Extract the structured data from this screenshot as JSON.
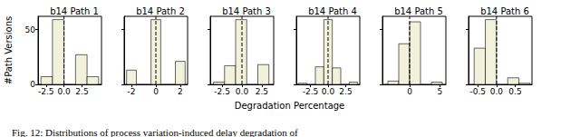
{
  "chart_data": [
    {
      "type": "histogram",
      "title": "b14 Path 1",
      "color": "#f2f1dc",
      "bins": [
        -3.2,
        -1.6,
        0.0,
        1.6,
        3.2,
        4.8
      ],
      "counts": [
        7,
        59,
        0,
        27,
        7
      ],
      "xlim": [
        -3.6,
        5.2
      ],
      "xticks": [
        -2.5,
        {
          "value": 0,
          "label": "0.0"
        },
        2.5
      ],
      "ylim": [
        0,
        62
      ],
      "yticks": [
        0,
        50
      ],
      "vline": 0
    },
    {
      "type": "histogram",
      "title": "b14 Path 2",
      "color": "#f2f1dc",
      "bins": [
        -2.4,
        -1.6,
        -0.4,
        0.4,
        1.6,
        2.4
      ],
      "counts": [
        13,
        0,
        59,
        0,
        21
      ],
      "xlim": [
        -2.6,
        2.6
      ],
      "xticks": [
        -2,
        0,
        2
      ],
      "ylim": [
        0,
        62
      ],
      "yticks": [
        0,
        50
      ],
      "vline": 0,
      "tick_labels": "x"
    },
    {
      "type": "histogram",
      "title": "b14 Path 3",
      "color": "#f2f1dc",
      "bins": [
        -3.6,
        -2.2,
        -0.8,
        0.6,
        2.0,
        3.4
      ],
      "counts": [
        2,
        17,
        59,
        0,
        18
      ],
      "xlim": [
        -4.0,
        4.0
      ],
      "xticks": [
        -2.5,
        {
          "value": 0,
          "label": "0.0"
        },
        2.5
      ],
      "ylim": [
        0,
        62
      ],
      "yticks": [
        0,
        50
      ],
      "vline": 0,
      "tick_labels": "x"
    },
    {
      "type": "histogram",
      "title": "b14 Path 4",
      "color": "#f2f1dc",
      "bins": [
        -4.2,
        -3.0,
        -1.8,
        -0.6,
        0.6,
        1.8,
        3.0,
        4.2
      ],
      "counts": [
        1,
        0,
        16,
        59,
        15,
        0,
        2
      ],
      "xlim": [
        -4.5,
        4.5
      ],
      "xticks": [
        -2.5,
        {
          "value": 0,
          "label": "0.0"
        },
        2.5
      ],
      "ylim": [
        0,
        62
      ],
      "yticks": [
        0,
        50
      ],
      "vline": 0,
      "tick_labels": "x"
    },
    {
      "type": "histogram",
      "title": "b14 Path 5",
      "color": "#f2f1dc",
      "bins": [
        -3.6,
        -1.8,
        0.0,
        1.8,
        3.6,
        5.4
      ],
      "counts": [
        3,
        37,
        57,
        0,
        2
      ],
      "xlim": [
        -4.5,
        6.0
      ],
      "xticks": [
        0,
        5
      ],
      "ylim": [
        0,
        62
      ],
      "yticks": [
        0,
        50
      ],
      "vline": 0,
      "tick_labels": "x"
    },
    {
      "type": "histogram",
      "title": "b14 Path 6",
      "color": "#f2f1dc",
      "bins": [
        -0.6,
        -0.3,
        0.0,
        0.3,
        0.6,
        0.9
      ],
      "counts": [
        33,
        59,
        0,
        6,
        1
      ],
      "xlim": [
        -0.75,
        0.95
      ],
      "xticks": [
        -0.5,
        {
          "value": 0,
          "label": "0.0"
        },
        0.5
      ],
      "ylim": [
        0,
        62
      ],
      "yticks": [
        0,
        50
      ],
      "vline": 0,
      "tick_labels": "x"
    }
  ],
  "xlabel": "Degradation Percentage",
  "ylabel": "#Path Versions",
  "caption": "Fig. 12: Distributions of process variation-induced delay degradation of"
}
